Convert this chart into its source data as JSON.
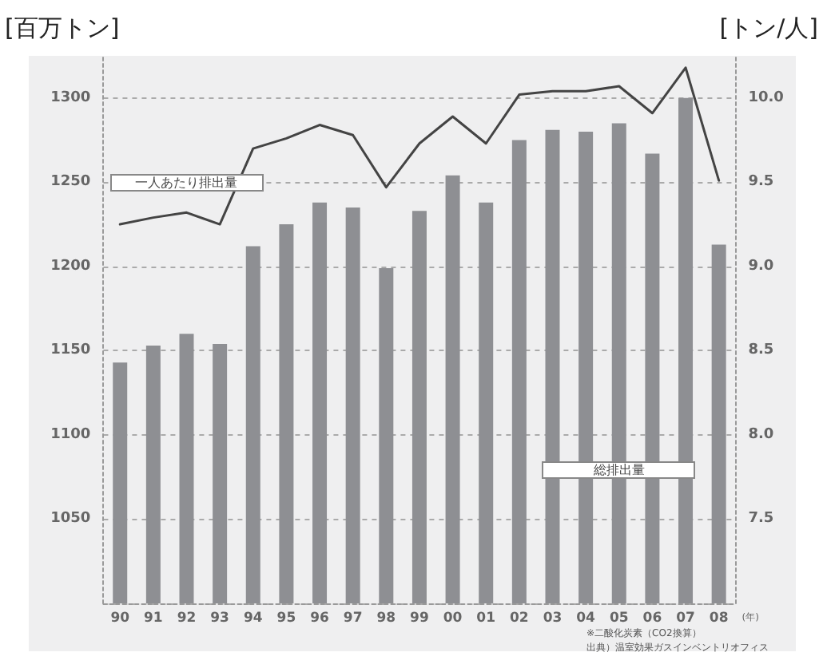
{
  "chart_data": {
    "type": "bar",
    "ylabel": "[百万トン]",
    "y2label": "[トン/人]",
    "xlabel": "(年)",
    "categories": [
      "90",
      "91",
      "92",
      "93",
      "94",
      "95",
      "96",
      "97",
      "98",
      "99",
      "00",
      "01",
      "02",
      "03",
      "04",
      "05",
      "06",
      "07",
      "08"
    ],
    "series": [
      {
        "name": "総排出量",
        "color": "#8e8f93",
        "values": [
          1143,
          1153,
          1160,
          1154,
          1212,
          1225,
          1238,
          1235,
          1199,
          1233,
          1254,
          1238,
          1275,
          1281,
          1280,
          1285,
          1267,
          1300,
          1213
        ]
      },
      {
        "name": "一人あたり排出量",
        "type": "line",
        "axis": "y2",
        "color": "#444444",
        "values": [
          9.25,
          9.29,
          9.32,
          9.25,
          9.7,
          9.76,
          9.84,
          9.78,
          9.47,
          9.73,
          9.89,
          9.73,
          10.02,
          10.04,
          10.04,
          10.07,
          9.91,
          10.18,
          9.51
        ]
      }
    ],
    "ylim": [
      1000,
      1325
    ],
    "yticks": [
      {
        "value": 1000,
        "label": null
      },
      1050,
      1100,
      1150,
      1200,
      1250,
      1300
    ],
    "y2lim": [
      7.0,
      10.25
    ],
    "y2ticks": [
      {
        "value": 7.0,
        "label": null
      },
      {
        "value": 7.5,
        "label": "7.5"
      },
      {
        "value": 8.0,
        "label": "8.0"
      },
      {
        "value": 8.5,
        "label": "8.5"
      },
      {
        "value": 9.0,
        "label": "9.0"
      },
      {
        "value": 9.5,
        "label": "9.5"
      },
      {
        "value": 10.0,
        "label": "10.0"
      }
    ],
    "grid": "y",
    "legend": false,
    "marker": "none",
    "line_style": "solid",
    "annotations": [
      "※二酸化炭素（CO2換算）",
      "出典）温室効果ガスインベントリオフィス"
    ]
  }
}
